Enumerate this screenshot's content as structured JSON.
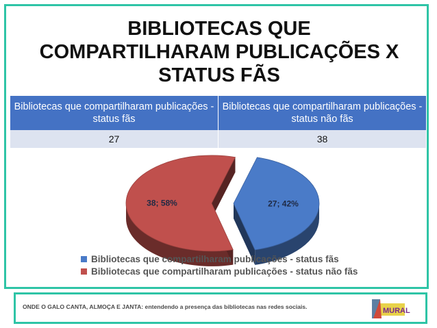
{
  "slide": {
    "title_lines": [
      "BIBLIOTECAS QUE",
      "COMPARTILHARAM PUBLICAÇÕES X",
      "STATUS FÃS"
    ]
  },
  "table": {
    "headers": [
      "Bibliotecas que compartilharam publicações - status fãs",
      "Bibliotecas que compartilharam publicações - status não fãs"
    ],
    "values": [
      "27",
      "38"
    ]
  },
  "chart_data": {
    "type": "pie",
    "labels": [
      "Bibliotecas que compartilharam publicações - status fãs",
      "Bibliotecas que compartilharam publicações - status não fãs"
    ],
    "values": [
      27,
      38
    ],
    "percentages": [
      42,
      58
    ],
    "data_labels": [
      "27; 42%",
      "38; 58%"
    ],
    "colors": [
      "#4a7bc8",
      "#c0504d"
    ],
    "exploded": true,
    "style": "3d",
    "legend_position": "bottom"
  },
  "footer": {
    "text": "ONDE O GALO CANTA, ALMOÇA E JANTA: entendendo a presença das bibliotecas nas redes sociais.",
    "logo_text": "MURAL"
  }
}
